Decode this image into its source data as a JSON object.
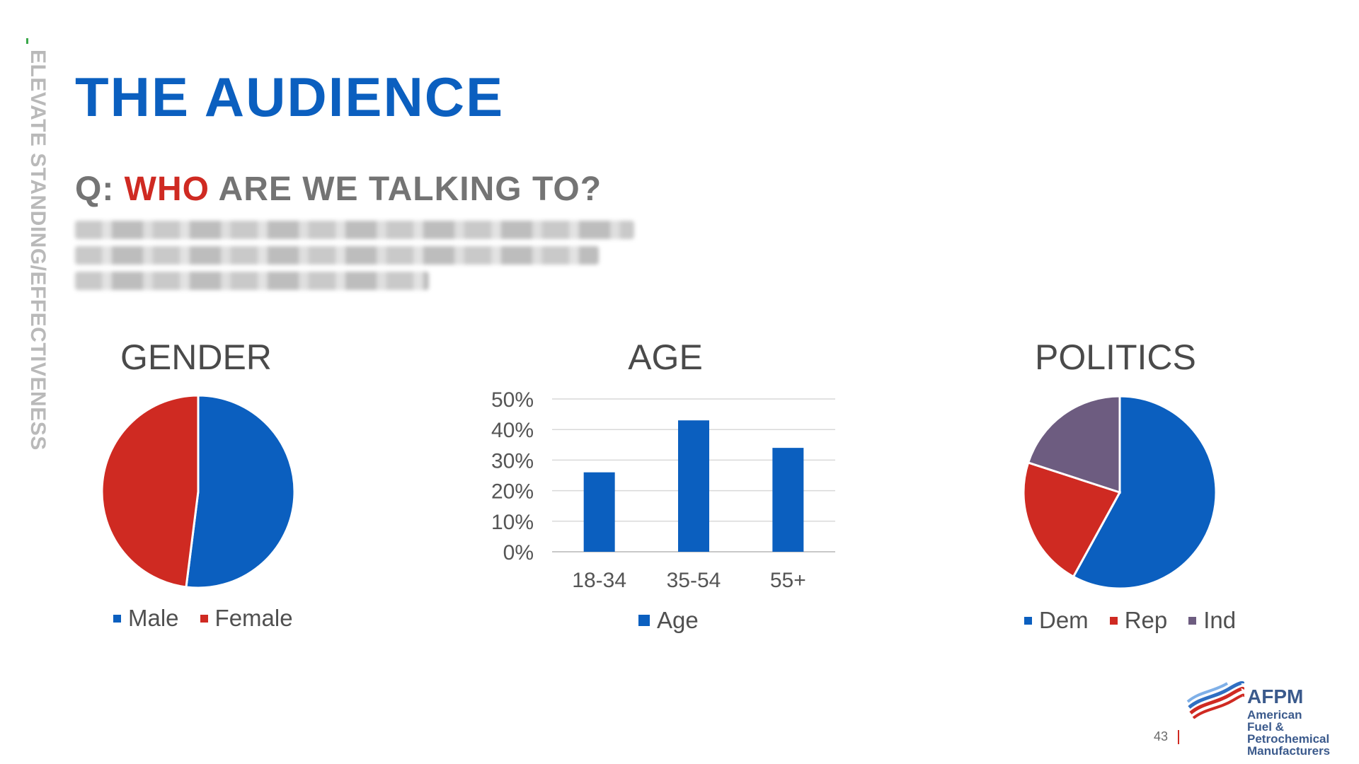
{
  "side_label": "ELEVATE STANDING/EFFECTIVENESS",
  "title": "THE AUDIENCE",
  "question": {
    "prefix": "Q: ",
    "highlight": "WHO",
    "suffix": " ARE WE TALKING TO?"
  },
  "colors": {
    "blue": "#0b5fbf",
    "red": "#cf2a22",
    "purple": "#6d5c80",
    "gray": "#747474"
  },
  "chart_data": [
    {
      "type": "pie",
      "title": "GENDER",
      "categories": [
        "Male",
        "Female"
      ],
      "values": [
        52,
        48
      ],
      "colors": [
        "#0b5fbf",
        "#cf2a22"
      ],
      "legend": "bottom"
    },
    {
      "type": "bar",
      "title": "AGE",
      "categories": [
        "18-34",
        "35-54",
        "55+"
      ],
      "series": [
        {
          "name": "Age",
          "values": [
            26,
            43,
            34
          ]
        }
      ],
      "ylim": [
        0,
        50
      ],
      "yticks": [
        "0%",
        "10%",
        "20%",
        "30%",
        "40%",
        "50%"
      ],
      "grid": true,
      "legend": "bottom"
    },
    {
      "type": "pie",
      "title": "POLITICS",
      "categories": [
        "Dem",
        "Rep",
        "Ind"
      ],
      "values": [
        58,
        22,
        20
      ],
      "colors": [
        "#0b5fbf",
        "#cf2a22",
        "#6d5c80"
      ],
      "legend": "bottom"
    }
  ],
  "page_number": "43",
  "logo": {
    "name": "AFPM",
    "lines": [
      "American",
      "Fuel & Petrochemical",
      "Manufacturers"
    ]
  }
}
